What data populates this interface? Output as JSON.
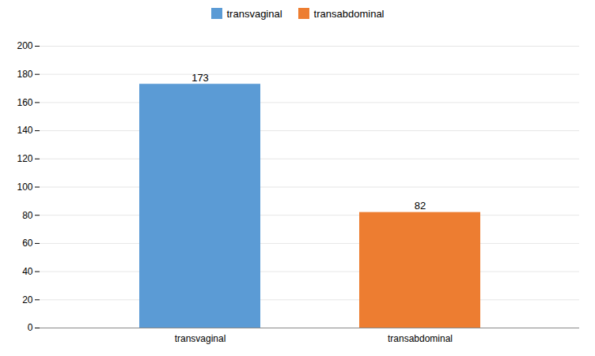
{
  "chart_data": {
    "type": "bar",
    "categories": [
      "transvaginal",
      "transabdominal"
    ],
    "values": [
      173,
      82
    ],
    "colors": [
      "#5B9BD5",
      "#ED7D31"
    ],
    "ylim": [
      0,
      200
    ],
    "yticks": [
      0,
      20,
      40,
      60,
      80,
      100,
      120,
      140,
      160,
      180,
      200
    ],
    "grid": true,
    "data_labels": true,
    "legend": "top"
  }
}
